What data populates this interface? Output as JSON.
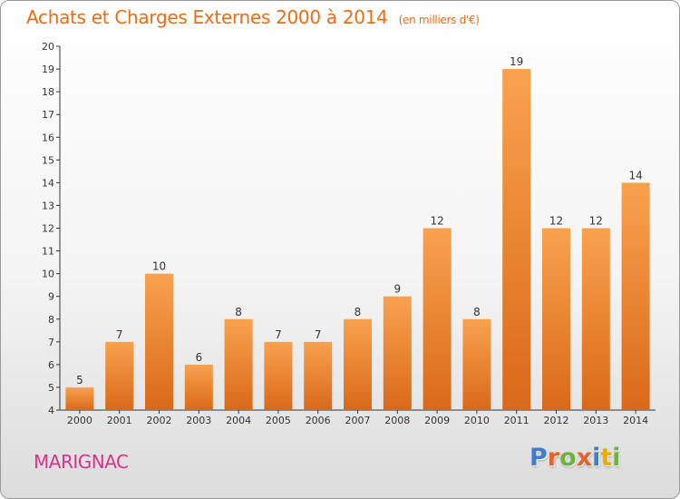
{
  "chart_data": {
    "type": "bar",
    "title": "Achats et Charges Externes 2000 à 2014",
    "subtitle": "(en milliers d'€)",
    "categories": [
      "2000",
      "2001",
      "2002",
      "2003",
      "2004",
      "2005",
      "2006",
      "2007",
      "2008",
      "2009",
      "2010",
      "2011",
      "2012",
      "2013",
      "2014"
    ],
    "values": [
      5,
      7,
      10,
      6,
      8,
      7,
      7,
      8,
      9,
      12,
      8,
      19,
      12,
      12,
      14
    ],
    "ylim": [
      4,
      20
    ],
    "yticks": [
      4,
      5,
      6,
      7,
      8,
      9,
      10,
      11,
      12,
      13,
      14,
      15,
      16,
      17,
      18,
      19,
      20
    ],
    "grid": false,
    "legend": "none",
    "colors": {
      "bar_light": "#f9a24e",
      "bar_dark": "#d9691a",
      "axis": "#333333",
      "title": "#ee6b14"
    }
  },
  "footer": {
    "location": "MARIGNAC",
    "location_color": "#d9318c"
  },
  "logo": {
    "text": "Proxiti",
    "letter_colors": [
      "#3a7fd0",
      "#e8632a",
      "#6cb33f",
      "#e8632a",
      "#3a7fd0",
      "#f2a900",
      "#6cb33f"
    ]
  }
}
